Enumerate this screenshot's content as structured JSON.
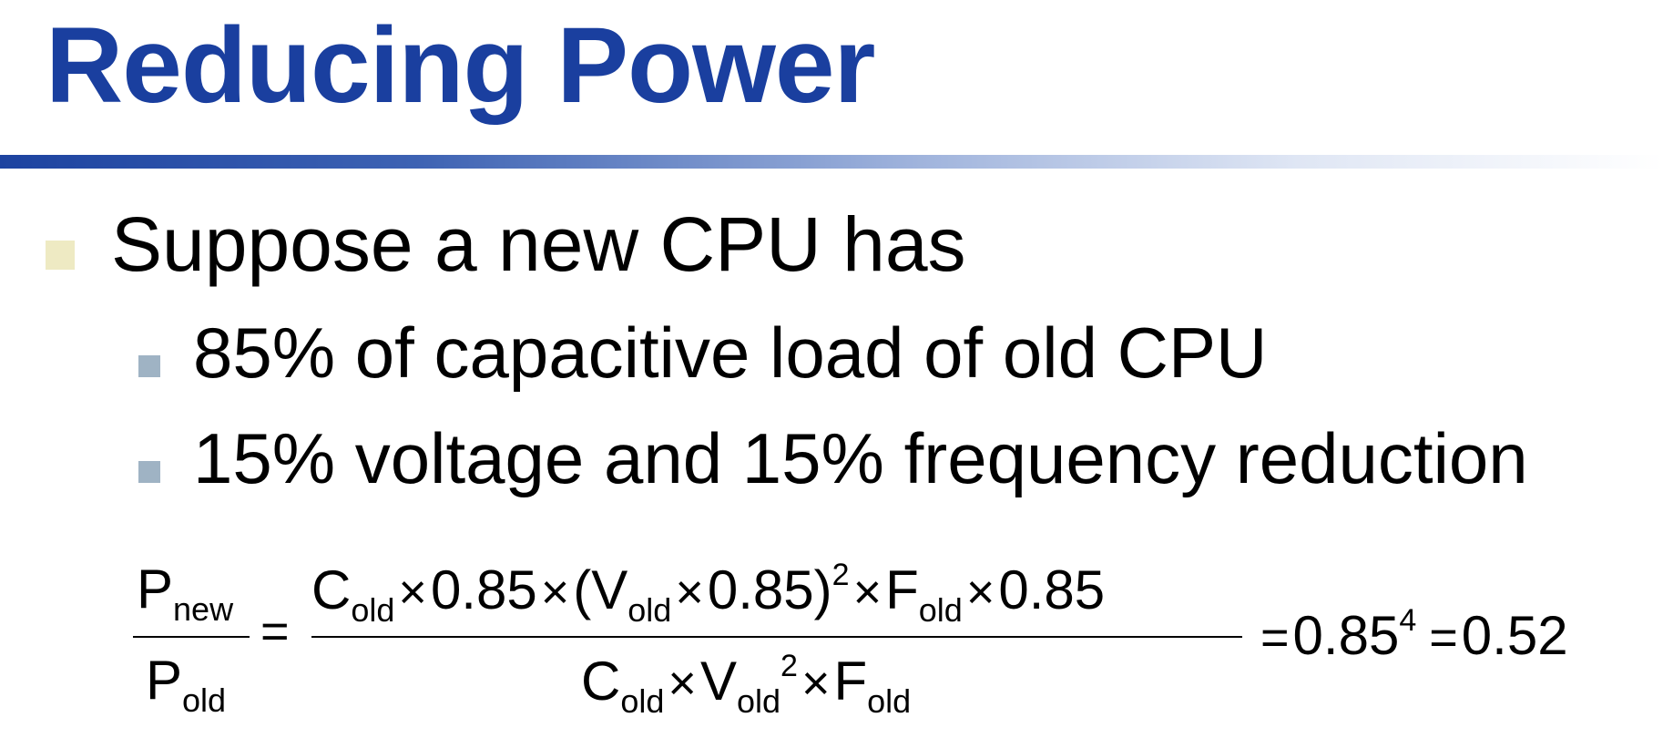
{
  "slide": {
    "title": "Reducing Power",
    "bullet": "Suppose a new CPU has",
    "subbullets": [
      "85% of capacitive load of old CPU",
      "15% voltage and 15% frequency reduction"
    ]
  },
  "formula": {
    "lhs_num": "P",
    "lhs_num_sub": "new",
    "lhs_den": "P",
    "lhs_den_sub": "old",
    "times": "×",
    "equals": "=",
    "C": "C",
    "V": "V",
    "F": "F",
    "old": "old",
    "factor": "0.85",
    "open_paren": "(",
    "close_paren": ")",
    "square": "2",
    "result1_base": "0.85",
    "result1_exp": "4",
    "result2": "0.52"
  },
  "colors": {
    "title": "#1a3f9f",
    "bullet_level1": "#eeeac3",
    "bullet_level2": "#9fb3c4"
  }
}
